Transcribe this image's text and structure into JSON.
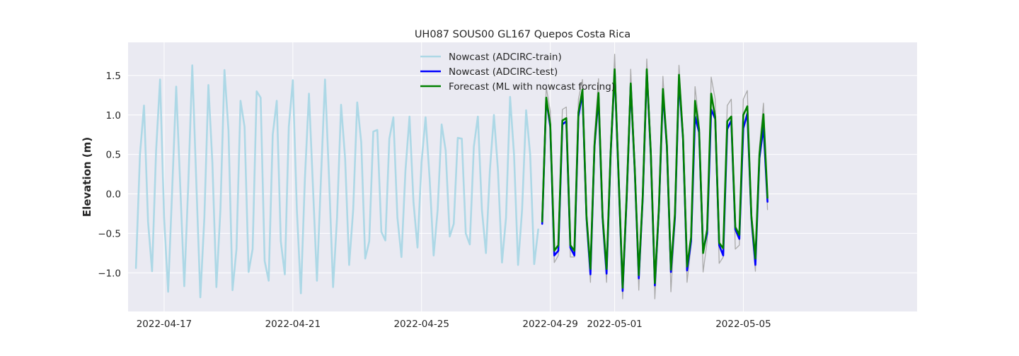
{
  "chart_data": {
    "type": "line",
    "title": "UH087 SOUS00 GL167 Quepos Costa Rica",
    "xlabel": "",
    "ylabel": "Elevation (m)",
    "x_unit": "days since 2022-04-17",
    "xlim": [
      -1.12,
      23.4
    ],
    "ylim": [
      -1.49,
      1.92
    ],
    "x_ticks": [
      {
        "value": 0,
        "label": "2022-04-17"
      },
      {
        "value": 4,
        "label": "2022-04-21"
      },
      {
        "value": 8,
        "label": "2022-04-25"
      },
      {
        "value": 12,
        "label": "2022-04-29"
      },
      {
        "value": 14,
        "label": "2022-05-01"
      },
      {
        "value": 18,
        "label": "2022-05-05"
      }
    ],
    "y_ticks": [
      {
        "value": -1.0,
        "label": "−1.0"
      },
      {
        "value": -0.5,
        "label": "−0.5"
      },
      {
        "value": 0.0,
        "label": "0.0"
      },
      {
        "value": 0.5,
        "label": "0.5"
      },
      {
        "value": 1.0,
        "label": "1.0"
      },
      {
        "value": 1.5,
        "label": "1.5"
      }
    ],
    "grid": true,
    "legend_position": "top-center",
    "colors": {
      "background": "#eaeaf2",
      "grid": "#ffffff",
      "train": "#add8e6",
      "test": "#0000ff",
      "forecast": "#008000",
      "observed": "#aaaaaa"
    },
    "series": [
      {
        "name": "Nowcast (ADCIRC-train)",
        "role": "train",
        "x": [
          -0.875,
          -0.75,
          -0.625,
          -0.5,
          -0.375,
          -0.25,
          -0.125,
          0.0,
          0.125,
          0.25,
          0.375,
          0.5,
          0.625,
          0.75,
          0.875,
          1.0,
          1.125,
          1.25,
          1.375,
          1.5,
          1.625,
          1.75,
          1.875,
          2.0,
          2.125,
          2.25,
          2.375,
          2.5,
          2.625,
          2.75,
          2.875,
          3.0,
          3.125,
          3.25,
          3.375,
          3.5,
          3.625,
          3.75,
          3.875,
          4.0,
          4.125,
          4.25,
          4.375,
          4.5,
          4.625,
          4.75,
          4.875,
          5.0,
          5.125,
          5.25,
          5.375,
          5.5,
          5.625,
          5.75,
          5.875,
          6.0,
          6.125,
          6.25,
          6.375,
          6.5,
          6.625,
          6.75,
          6.875,
          7.0,
          7.125,
          7.25,
          7.375,
          7.5,
          7.625,
          7.75,
          7.875,
          8.0,
          8.125,
          8.25,
          8.375,
          8.5,
          8.625,
          8.75,
          8.875,
          9.0,
          9.125,
          9.25,
          9.375,
          9.5,
          9.625,
          9.75,
          9.875,
          10.0,
          10.125,
          10.25,
          10.375,
          10.5,
          10.625,
          10.75,
          10.875,
          11.0,
          11.125,
          11.25,
          11.375,
          11.5,
          11.625
        ],
        "values": [
          -0.94,
          0.5,
          1.12,
          -0.35,
          -0.98,
          0.55,
          1.45,
          -0.3,
          -1.24,
          0.05,
          1.36,
          0.1,
          -1.17,
          0.1,
          1.63,
          0.15,
          -1.31,
          -0.3,
          1.38,
          0.4,
          -1.18,
          -0.2,
          1.57,
          0.8,
          -1.22,
          -0.7,
          1.18,
          0.85,
          -0.99,
          -0.7,
          1.3,
          1.22,
          -0.85,
          -1.1,
          0.75,
          1.18,
          -0.6,
          -1.02,
          0.85,
          1.44,
          -0.2,
          -1.26,
          0.2,
          1.27,
          0.1,
          -1.1,
          0.2,
          1.45,
          0.2,
          -1.18,
          -0.3,
          1.13,
          0.45,
          -0.9,
          -0.2,
          1.16,
          0.65,
          -0.82,
          -0.6,
          0.79,
          0.81,
          -0.48,
          -0.59,
          0.7,
          0.97,
          -0.3,
          -0.8,
          0.3,
          0.98,
          -0.1,
          -0.68,
          0.4,
          0.97,
          0.2,
          -0.78,
          -0.2,
          0.88,
          0.55,
          -0.54,
          -0.38,
          0.71,
          0.7,
          -0.5,
          -0.64,
          0.6,
          0.98,
          -0.2,
          -0.75,
          0.3,
          1.0,
          0.3,
          -0.87,
          -0.3,
          1.23,
          0.5,
          -0.9,
          -0.2,
          1.06,
          0.5,
          -0.89,
          -0.45
        ]
      },
      {
        "name": "Nowcast (ADCIRC-test)",
        "role": "test",
        "x": [
          11.75,
          11.875,
          12.0,
          12.125,
          12.25,
          12.375,
          12.5,
          12.625,
          12.75,
          12.875,
          13.0,
          13.125,
          13.25,
          13.375,
          13.5,
          13.625,
          13.75,
          13.875,
          14.0,
          14.125,
          14.25,
          14.375,
          14.5,
          14.625,
          14.75,
          14.875,
          15.0,
          15.125,
          15.25,
          15.375,
          15.5,
          15.625,
          15.75,
          15.875,
          16.0,
          16.125,
          16.25,
          16.375,
          16.5,
          16.625,
          16.75,
          16.875,
          17.0,
          17.125,
          17.25,
          17.375,
          17.5,
          17.625,
          17.75,
          17.875,
          18.0,
          18.125,
          18.25,
          18.375,
          18.5,
          18.625,
          18.75
        ],
        "values": [
          -0.38,
          1.2,
          0.85,
          -0.78,
          -0.72,
          0.88,
          0.92,
          -0.68,
          -0.78,
          0.98,
          1.28,
          -0.3,
          -1.02,
          0.6,
          1.22,
          -0.3,
          -1.01,
          0.5,
          1.55,
          0.2,
          -1.23,
          -0.05,
          1.38,
          0.3,
          -1.07,
          -0.05,
          1.55,
          0.5,
          -1.16,
          -0.2,
          1.28,
          0.6,
          -0.99,
          -0.3,
          1.45,
          0.7,
          -0.97,
          -0.6,
          0.98,
          0.78,
          -0.72,
          -0.5,
          1.07,
          0.95,
          -0.65,
          -0.78,
          0.82,
          0.93,
          -0.45,
          -0.57,
          0.83,
          1.02,
          -0.3,
          -0.9,
          0.45,
          0.85,
          -0.1
        ]
      },
      {
        "name": "Forecast (ML with nowcast forcing)",
        "role": "forecast",
        "x": [
          11.75,
          11.875,
          12.0,
          12.125,
          12.25,
          12.375,
          12.5,
          12.625,
          12.75,
          12.875,
          13.0,
          13.125,
          13.25,
          13.375,
          13.5,
          13.625,
          13.75,
          13.875,
          14.0,
          14.125,
          14.25,
          14.375,
          14.5,
          14.625,
          14.75,
          14.875,
          15.0,
          15.125,
          15.25,
          15.375,
          15.5,
          15.625,
          15.75,
          15.875,
          16.0,
          16.125,
          16.25,
          16.375,
          16.5,
          16.625,
          16.75,
          16.875,
          17.0,
          17.125,
          17.25,
          17.375,
          17.5,
          17.625,
          17.75,
          17.875,
          18.0,
          18.125,
          18.25,
          18.375,
          18.5,
          18.625,
          18.75
        ],
        "values": [
          -0.35,
          1.22,
          0.88,
          -0.72,
          -0.65,
          0.93,
          0.96,
          -0.65,
          -0.72,
          1.03,
          1.32,
          -0.28,
          -0.95,
          0.62,
          1.28,
          -0.28,
          -0.95,
          0.52,
          1.58,
          0.22,
          -1.19,
          -0.02,
          1.4,
          0.32,
          -1.03,
          -0.02,
          1.58,
          0.52,
          -1.13,
          -0.18,
          1.33,
          0.62,
          -0.96,
          -0.25,
          1.51,
          0.72,
          -0.92,
          -0.55,
          1.18,
          0.82,
          -0.75,
          -0.45,
          1.27,
          0.97,
          -0.62,
          -0.69,
          0.92,
          0.98,
          -0.42,
          -0.52,
          1.0,
          1.11,
          -0.28,
          -0.82,
          0.5,
          1.01,
          -0.05
        ]
      },
      {
        "name": "",
        "role": "observed",
        "x": [
          11.75,
          11.875,
          12.0,
          12.125,
          12.25,
          12.375,
          12.5,
          12.625,
          12.75,
          12.875,
          13.0,
          13.125,
          13.25,
          13.375,
          13.5,
          13.625,
          13.75,
          13.875,
          14.0,
          14.125,
          14.25,
          14.375,
          14.5,
          14.625,
          14.75,
          14.875,
          15.0,
          15.125,
          15.25,
          15.375,
          15.5,
          15.625,
          15.75,
          15.875,
          16.0,
          16.125,
          16.25,
          16.375,
          16.5,
          16.625,
          16.75,
          16.875,
          17.0,
          17.125,
          17.25,
          17.375,
          17.5,
          17.625,
          17.75,
          17.875,
          18.0,
          18.125,
          18.25,
          18.375,
          18.5,
          18.625,
          18.75
        ],
        "values": [
          -0.3,
          1.35,
          1.05,
          -0.87,
          -0.78,
          1.07,
          1.1,
          -0.8,
          -0.8,
          1.2,
          1.45,
          -0.4,
          -1.12,
          0.75,
          1.46,
          -0.4,
          -1.12,
          0.6,
          1.77,
          0.3,
          -1.33,
          0.05,
          1.58,
          0.4,
          -1.22,
          0.05,
          1.71,
          0.6,
          -1.33,
          -0.3,
          1.49,
          0.7,
          -1.24,
          -0.35,
          1.63,
          0.8,
          -1.12,
          -0.65,
          1.36,
          0.9,
          -0.99,
          -0.6,
          1.48,
          1.2,
          -0.88,
          -0.8,
          1.12,
          1.2,
          -0.7,
          -0.65,
          1.2,
          1.31,
          -0.4,
          -0.98,
          0.6,
          1.15,
          -0.2
        ]
      }
    ]
  }
}
